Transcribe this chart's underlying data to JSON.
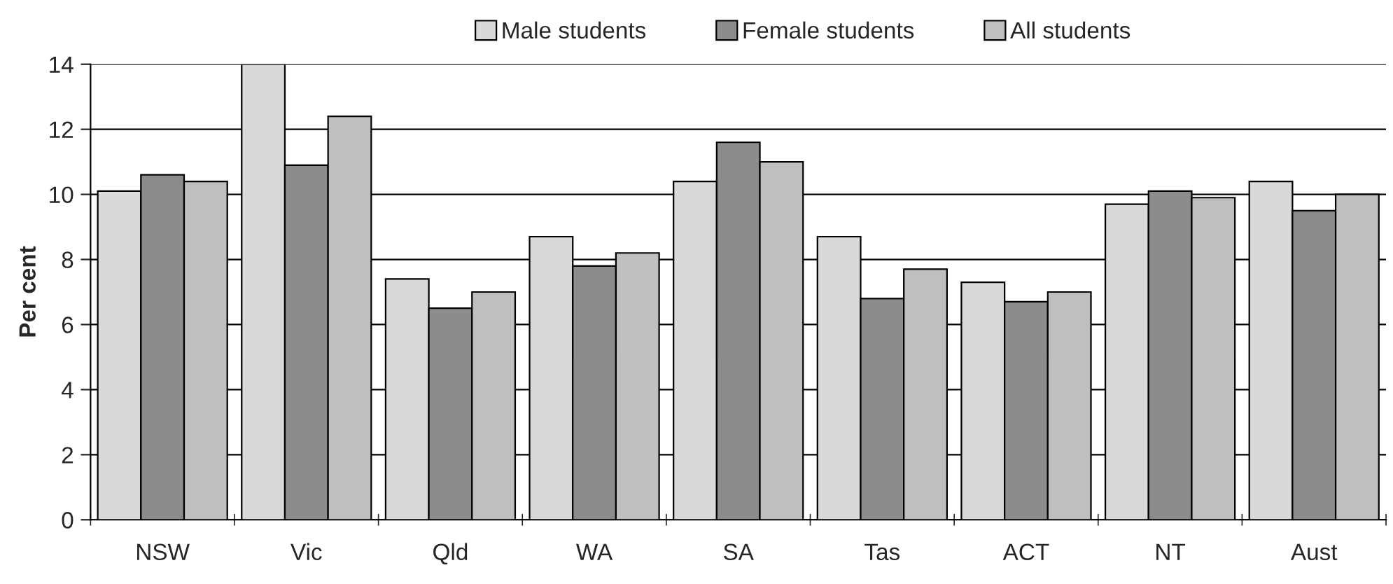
{
  "chart_data": {
    "type": "bar",
    "ylabel": "Per cent",
    "categories": [
      "NSW",
      "Vic",
      "Qld",
      "WA",
      "SA",
      "Tas",
      "ACT",
      "NT",
      "Aust"
    ],
    "series": [
      {
        "name": "Male students",
        "color": "#d9d9d9",
        "values": [
          10.1,
          14.0,
          7.4,
          8.7,
          10.4,
          8.7,
          7.3,
          9.7,
          10.4
        ]
      },
      {
        "name": "Female students",
        "color": "#8c8c8c",
        "values": [
          10.6,
          10.9,
          6.5,
          7.8,
          11.6,
          6.8,
          6.7,
          10.1,
          9.5
        ]
      },
      {
        "name": "All students",
        "color": "#bfbfbf",
        "values": [
          10.4,
          12.4,
          7.0,
          8.2,
          11.0,
          7.7,
          7.0,
          9.9,
          10.0
        ]
      }
    ],
    "ylim": [
      0,
      14
    ],
    "yticks": [
      0,
      2,
      4,
      6,
      8,
      10,
      12,
      14
    ],
    "grid": "y",
    "legend": "top"
  }
}
